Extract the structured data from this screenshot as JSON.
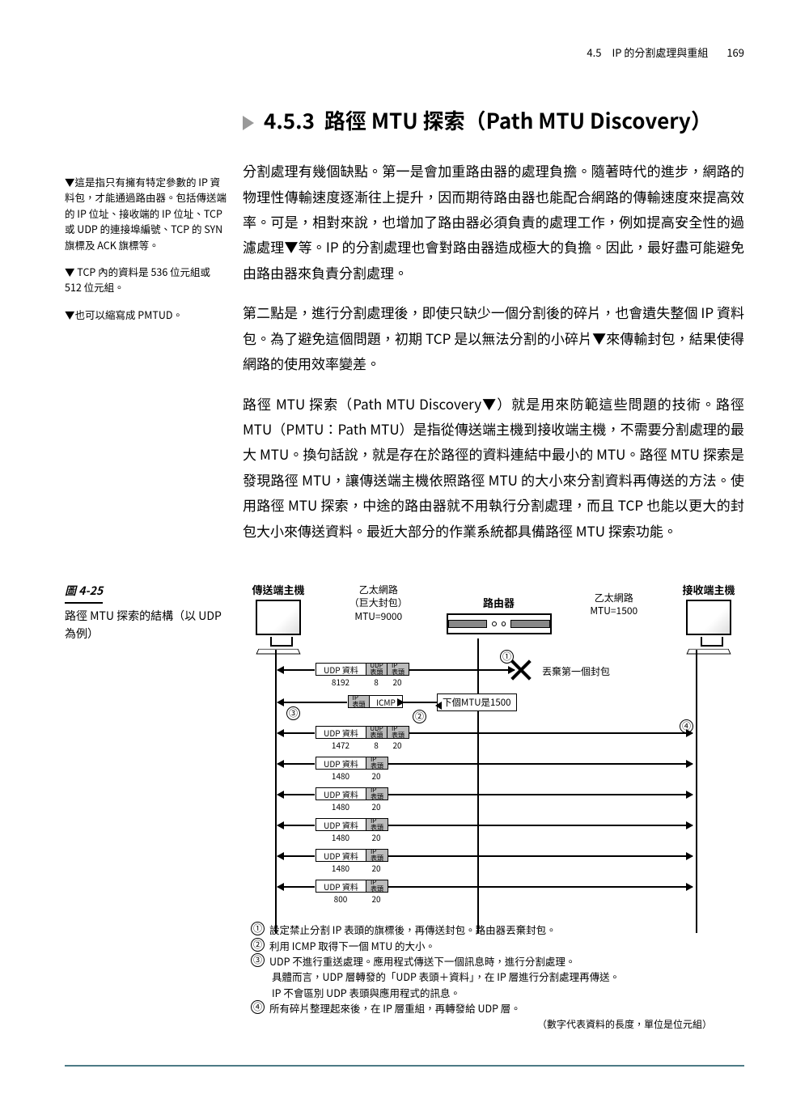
{
  "header": {
    "section": "4.5　IP 的分割處理與重組",
    "page": "169"
  },
  "heading": {
    "number": "4.5.3",
    "title": "路徑 MTU 探索（Path MTU Discovery）"
  },
  "sidenotes": {
    "n1": "▼這是指只有擁有特定參數的 IP 資料包，才能通過路由器。包括傳送端的 IP 位址、接收端的 IP 位址、TCP 或 UDP 的連接埠編號、TCP 的 SYN 旗標及 ACK 旗標等。",
    "n2": "▼ TCP 內的資料是 536 位元組或 512 位元組。",
    "n3": "▼也可以縮寫成 PMTUD。"
  },
  "paras": {
    "p1": "分割處理有幾個缺點。第一是會加重路由器的處理負擔。隨著時代的進步，網路的物理性傳輸速度逐漸往上提升，因而期待路由器也能配合網路的傳輸速度來提高效率。可是，相對來說，也增加了路由器必須負責的處理工作，例如提高安全性的過濾處理▼等。IP 的分割處理也會對路由器造成極大的負擔。因此，最好盡可能避免由路由器來負責分割處理。",
    "p2": "第二點是，進行分割處理後，即使只缺少一個分割後的碎片，也會遺失整個 IP 資料包。為了避免這個問題，初期 TCP 是以無法分割的小碎片▼來傳輸封包，結果使得網路的使用效率變差。",
    "p3": "路徑 MTU 探索（Path MTU Discovery▼）就是用來防範這些問題的技術。路徑 MTU（PMTU：Path MTU）是指從傳送端主機到接收端主機，不需要分割處理的最大 MTU。換句話說，就是存在於路徑的資料連結中最小的 MTU。路徑 MTU 探索是發現路徑 MTU，讓傳送端主機依照路徑 MTU 的大小來分割資料再傳送的方法。使用路徑 MTU 探索，中途的路由器就不用執行分割處理，而且 TCP 也能以更大的封包大小來傳送資料。最近大部分的作業系統都具備路徑 MTU 探索功能。"
  },
  "figure": {
    "number": "圖 4-25",
    "caption": "路徑 MTU 探索的結構（以 UDP 為例）",
    "labels": {
      "sender": "傳送端主機",
      "receiver": "接收端主機",
      "router": "路由器",
      "eth_big": "乙太網路\n（巨大封包）\nMTU=9000",
      "eth_small": "乙太網路\nMTU=1500",
      "discard": "丟棄第一個封包",
      "next_mtu": "下個MTU是1500"
    },
    "packets": {
      "first": {
        "data": "UDP 資料",
        "data_len": "8192",
        "udp": "UDP\n表頭",
        "udp_len": "8",
        "ip": "IP\n表頭",
        "ip_len": "20"
      },
      "icmp": {
        "ip": "IP\n表頭",
        "label": "ICMP"
      },
      "frag1": {
        "data": "UDP 資料",
        "data_len": "1472",
        "udp": "UDP\n表頭",
        "udp_len": "8",
        "ip": "IP\n表頭",
        "ip_len": "20"
      },
      "frag2": {
        "data": "UDP 資料",
        "data_len": "1480",
        "ip": "IP\n表頭",
        "ip_len": "20"
      },
      "frag3": {
        "data": "UDP 資料",
        "data_len": "1480",
        "ip": "IP\n表頭",
        "ip_len": "20"
      },
      "frag4": {
        "data": "UDP 資料",
        "data_len": "1480",
        "ip": "IP\n表頭",
        "ip_len": "20"
      },
      "frag5": {
        "data": "UDP 資料",
        "data_len": "1480",
        "ip": "IP\n表頭",
        "ip_len": "20"
      },
      "frag6": {
        "data": "UDP 資料",
        "data_len": "800",
        "ip": "IP\n表頭",
        "ip_len": "20"
      }
    },
    "legend": {
      "l1": "設定禁止分割 IP 表頭的旗標後，再傳送封包。路由器丟棄封包。",
      "l2": "利用 ICMP 取得下一個 MTU 的大小。",
      "l3a": "UDP 不進行重送處理。應用程式傳送下一個訊息時，進行分割處理。",
      "l3b": "具體而言，UDP 層轉發的「UDP 表頭＋資料」，在 IP 層進行分割處理再傳送。",
      "l3c": "IP 不會區別 UDP 表頭與應用程式的訊息。",
      "l4": "所有碎片整理起來後，在 IP 層重組，再轉發給 UDP 層。",
      "unit": "（數字代表資料的長度，單位是位元組）"
    },
    "style": {
      "widths": {
        "data_cell": 62,
        "hdr_cell": 26,
        "icmp_cell": 40
      },
      "colors": {
        "border": "#000000",
        "header_fill": "#bbbbbb",
        "bg": "#ffffff"
      }
    }
  }
}
